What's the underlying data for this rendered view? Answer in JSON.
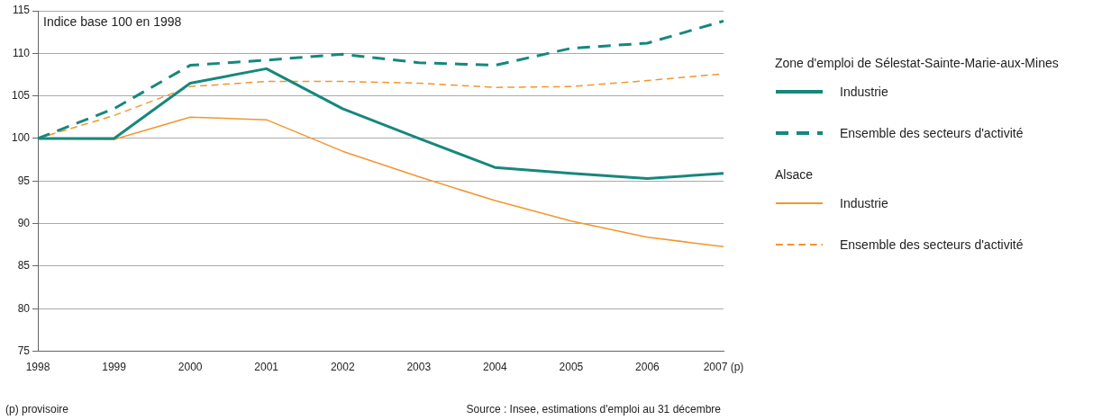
{
  "chart_data": {
    "type": "line",
    "ylabel": "Indice base 100 en 1998",
    "categories": [
      "1998",
      "1999",
      "2000",
      "2001",
      "2002",
      "2003",
      "2004",
      "2005",
      "2006",
      "2007 (p)"
    ],
    "series": [
      {
        "name": "Industrie",
        "color": "#17877d",
        "line_style": "solid",
        "values": [
          100,
          100,
          106.5,
          108.2,
          103.5,
          100,
          96.6,
          95.9,
          95.3,
          95.9
        ]
      },
      {
        "name": "Ensemble des secteurs d'activité",
        "color": "#17877d",
        "line_style": "dashed",
        "values": [
          100,
          103.5,
          108.6,
          109.2,
          109.9,
          108.9,
          108.6,
          110.6,
          111.2,
          113.8
        ]
      },
      {
        "name": "Industrie",
        "color": "#f0962e",
        "line_style": "solid",
        "values": [
          100,
          99.9,
          102.5,
          102.2,
          98.5,
          95.5,
          92.7,
          90.3,
          88.4,
          87.3
        ]
      },
      {
        "name": "Ensemble des secteurs d'activité",
        "color": "#f0962e",
        "line_style": "dashed",
        "values": [
          100,
          102.7,
          106.1,
          106.7,
          106.7,
          106.5,
          106,
          106.1,
          106.8,
          107.6
        ]
      }
    ],
    "legend_title": [
      "Zone d'emploi de Sélestat-Sainte-Marie-aux-Mines",
      "Alsace"
    ],
    "ylim": [
      75,
      115
    ],
    "yticks": [
      75,
      80,
      85,
      90,
      95,
      100,
      105,
      110,
      115
    ],
    "grid": "y",
    "legend": "right",
    "marker": "none",
    "annotations": [
      "(p) provisoire",
      "Source : Insee, estimations d'emploi au 31 décembre"
    ]
  }
}
